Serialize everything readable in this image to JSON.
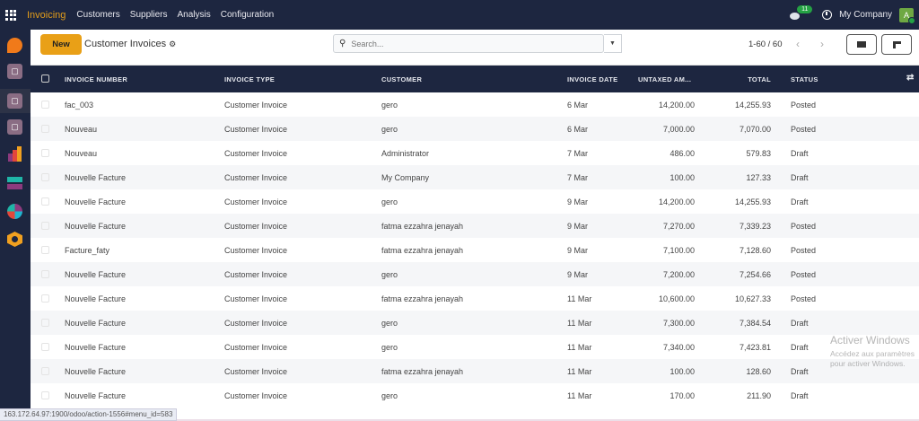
{
  "topbar": {
    "app": "Invoicing",
    "menus": [
      "Customers",
      "Suppliers",
      "Analysis",
      "Configuration"
    ],
    "message_count": "11",
    "company": "My Company",
    "avatar_letter": "A"
  },
  "sidebar": {
    "icons": [
      "discuss-icon",
      "inventory-box-icon",
      "inventory-box-icon",
      "inventory-box-icon",
      "bar-chart-app-icon",
      "stripes-app-icon",
      "pie-app-icon",
      "hexagon-app-icon"
    ]
  },
  "control": {
    "new_label": "New",
    "title": "Customer Invoices",
    "search_placeholder": "Search...",
    "pager": "1-60 / 60"
  },
  "table": {
    "columns": [
      "INVOICE NUMBER",
      "INVOICE TYPE",
      "CUSTOMER",
      "INVOICE DATE",
      "UNTAXED AM...",
      "TOTAL",
      "STATUS"
    ],
    "rows": [
      [
        "fac_003",
        "Customer Invoice",
        "gero",
        "6 Mar",
        "14,200.00",
        "14,255.93",
        "Posted"
      ],
      [
        "Nouveau",
        "Customer Invoice",
        "gero",
        "6 Mar",
        "7,000.00",
        "7,070.00",
        "Posted"
      ],
      [
        "Nouveau",
        "Customer Invoice",
        "Administrator",
        "7 Mar",
        "486.00",
        "579.83",
        "Draft"
      ],
      [
        "Nouvelle Facture",
        "Customer Invoice",
        "My Company",
        "7 Mar",
        "100.00",
        "127.33",
        "Draft"
      ],
      [
        "Nouvelle Facture",
        "Customer Invoice",
        "gero",
        "9 Mar",
        "14,200.00",
        "14,255.93",
        "Draft"
      ],
      [
        "Nouvelle Facture",
        "Customer Invoice",
        "fatma ezzahra jenayah",
        "9 Mar",
        "7,270.00",
        "7,339.23",
        "Posted"
      ],
      [
        "Facture_faty",
        "Customer Invoice",
        "fatma ezzahra jenayah",
        "9 Mar",
        "7,100.00",
        "7,128.60",
        "Posted"
      ],
      [
        "Nouvelle Facture",
        "Customer Invoice",
        "gero",
        "9 Mar",
        "7,200.00",
        "7,254.66",
        "Posted"
      ],
      [
        "Nouvelle Facture",
        "Customer Invoice",
        "fatma ezzahra jenayah",
        "11 Mar",
        "10,600.00",
        "10,627.33",
        "Posted"
      ],
      [
        "Nouvelle Facture",
        "Customer Invoice",
        "gero",
        "11 Mar",
        "7,300.00",
        "7,384.54",
        "Draft"
      ],
      [
        "Nouvelle Facture",
        "Customer Invoice",
        "gero",
        "11 Mar",
        "7,340.00",
        "7,423.81",
        "Draft"
      ],
      [
        "Nouvelle Facture",
        "Customer Invoice",
        "fatma ezzahra jenayah",
        "11 Mar",
        "100.00",
        "128.60",
        "Draft"
      ],
      [
        "Nouvelle Facture",
        "Customer Invoice",
        "gero",
        "11 Mar",
        "170.00",
        "211.90",
        "Draft"
      ]
    ]
  },
  "statusbar": {
    "url": "163.172.64.97:1900/odoo/action-1556#menu_id=583"
  },
  "watermark": {
    "title": "Activer Windows",
    "subtitle": "Accédez aux paramètres pour activer Windows."
  },
  "colors": {
    "navbar": "#1d2640",
    "brand": "#e39d1a",
    "new_button": "#e9a017",
    "badge": "#25a244"
  }
}
